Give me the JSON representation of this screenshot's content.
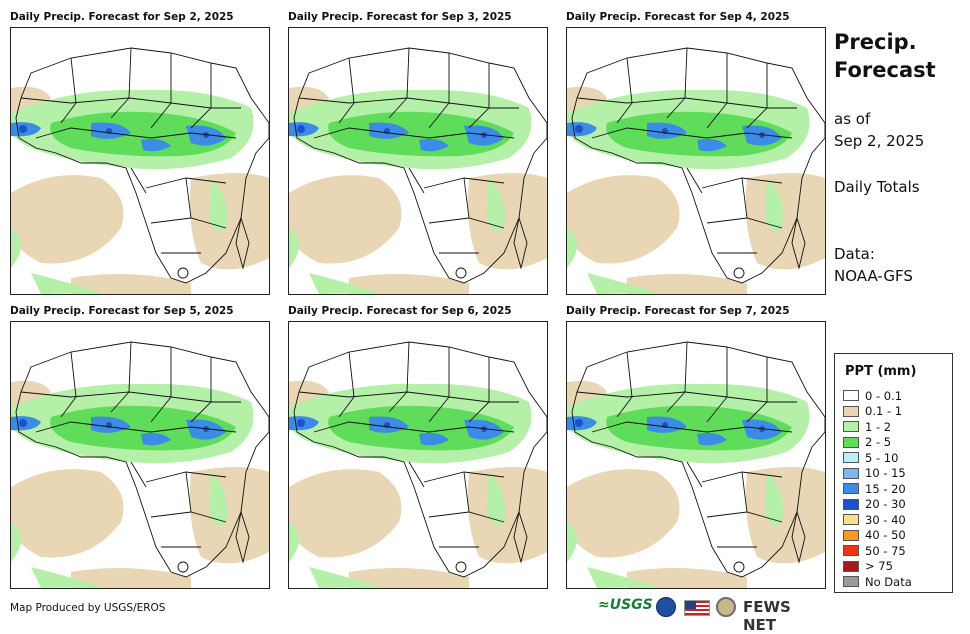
{
  "panels": [
    {
      "title": "Daily Precip. Forecast for Sep 2, 2025"
    },
    {
      "title": "Daily Precip. Forecast for Sep 3, 2025"
    },
    {
      "title": "Daily Precip. Forecast for Sep 4, 2025"
    },
    {
      "title": "Daily Precip. Forecast for Sep 5, 2025"
    },
    {
      "title": "Daily Precip. Forecast for Sep 6, 2025"
    },
    {
      "title": "Daily Precip. Forecast for Sep 7, 2025"
    }
  ],
  "side": {
    "title_line1": "Precip.",
    "title_line2": "Forecast",
    "asof_line1": "as of",
    "asof_line2": "Sep 2, 2025",
    "totals": "Daily Totals",
    "data_line1": "Data:",
    "data_line2": "NOAA-GFS"
  },
  "legend": {
    "title": "PPT (mm)",
    "items": [
      {
        "label": "0 - 0.1",
        "color": "#ffffff"
      },
      {
        "label": "0.1 - 1",
        "color": "#e8d6b4"
      },
      {
        "label": "1 - 2",
        "color": "#b4f0a8"
      },
      {
        "label": "2 - 5",
        "color": "#5fdc5a"
      },
      {
        "label": "5 - 10",
        "color": "#b8f0f4"
      },
      {
        "label": "10 - 15",
        "color": "#7ab8f0"
      },
      {
        "label": "15 - 20",
        "color": "#3c8ce6"
      },
      {
        "label": "20 - 30",
        "color": "#1a52c8"
      },
      {
        "label": "30 - 40",
        "color": "#f6e08a"
      },
      {
        "label": "40 - 50",
        "color": "#f59a1a"
      },
      {
        "label": "50 - 75",
        "color": "#f03212"
      },
      {
        "label": "> 75",
        "color": "#a81818"
      },
      {
        "label": "No Data",
        "color": "#9a9a9a"
      }
    ]
  },
  "footer": {
    "credit": "Map Produced by USGS/EROS"
  },
  "logos": {
    "usgs": "≈USGS",
    "fews": "FEWS NET"
  }
}
